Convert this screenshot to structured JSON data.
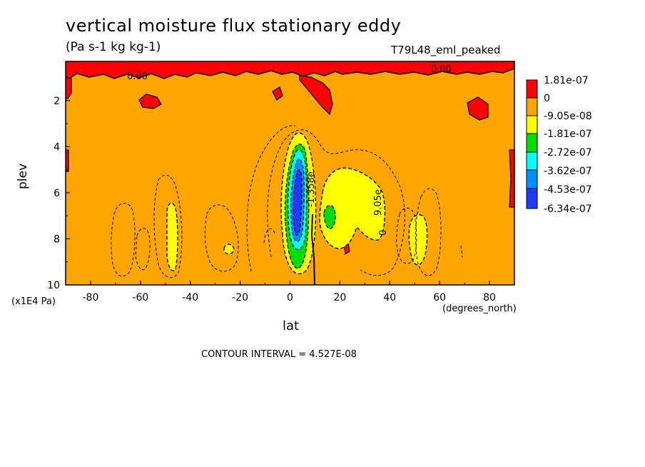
{
  "title": "vertical moisture flux stationary eddy",
  "units": "(Pa s-1 kg kg-1)",
  "run": "T79L48_eml_peaked",
  "contour_interval": "CONTOUR INTERVAL = 4.527E-08",
  "contour_labels": [
    "0.00",
    "0.00",
    "9.05e",
    "0",
    "-1.358e"
  ],
  "colors": {
    "background": "#ffa500",
    "positive": "#ff0000",
    "neg1": "#ffff00",
    "neg2": "#00dd00",
    "neg3": "#00ffff",
    "neg4": "#0090ff",
    "neg5": "#1e3cff"
  },
  "chart_data": {
    "type": "contour",
    "title": "vertical moisture flux stationary eddy",
    "subtitle": "(Pa s-1 kg kg-1)",
    "xlabel": "lat",
    "xunits": "(degrees_north)",
    "ylabel": "plev",
    "yunits": "(x1E4 Pa)",
    "xlim": [
      -90,
      90
    ],
    "ylim": [
      10,
      0.3
    ],
    "xticks": [
      "-80",
      "-60",
      "-40",
      "-20",
      "0",
      "20",
      "40",
      "60",
      "80"
    ],
    "yticks": [
      "2",
      "4",
      "6",
      "8",
      "10"
    ],
    "legend": {
      "placement": "right",
      "levels": [
        "1.81e-07",
        "0",
        "-9.05e-08",
        "-1.81e-07",
        "-2.72e-07",
        "-3.62e-07",
        "-4.53e-07",
        "-6.34e-07"
      ]
    },
    "features": [
      {
        "name": "tropical minimum",
        "lat": 2,
        "plev": 6.5,
        "value": -6.34e-07
      },
      {
        "name": "subtropical minimum NH",
        "lat": 15,
        "plev": 7,
        "value": -2.72e-07
      },
      {
        "name": "minimum SH midlatitude",
        "lat": -47,
        "plev": 7.5,
        "value": -1.81e-07
      },
      {
        "name": "minimum NH midlatitude",
        "lat": 52,
        "plev": 8,
        "value": -1.81e-07
      },
      {
        "name": "positive band upper levels",
        "plev": 1,
        "value": 1.81e-07
      }
    ]
  }
}
